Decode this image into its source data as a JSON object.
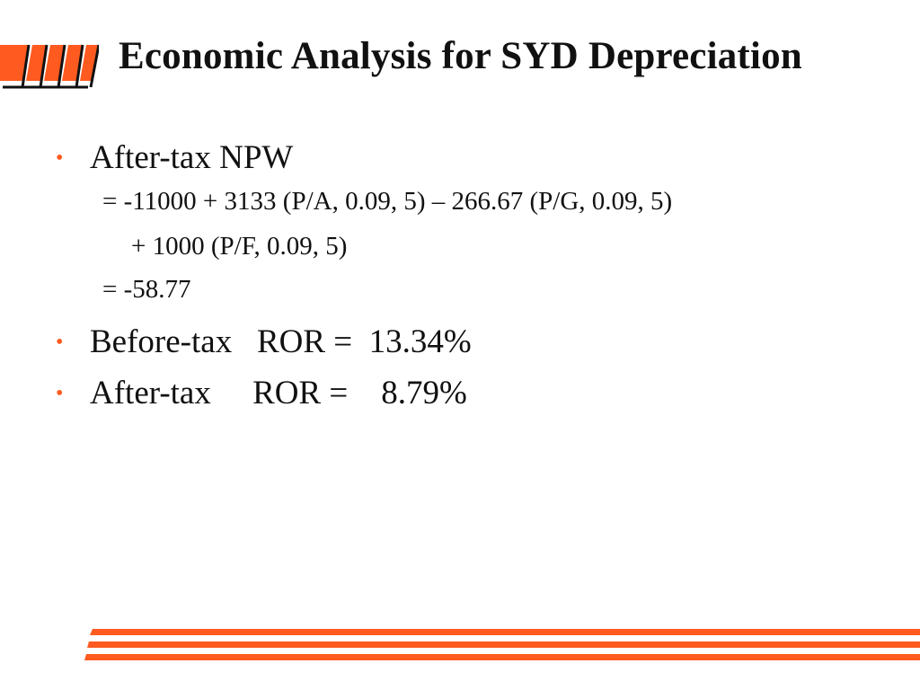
{
  "slide": {
    "title": "Economic Analysis for SYD Depreciation",
    "accent_color": "#ff5a1f",
    "logo_icon": "striped-bars-logo",
    "bullets": [
      {
        "label": "After-tax NPW",
        "lines": [
          "= -11000 + 3133 (P/A, 0.09, 5) – 266.67 (P/G, 0.09, 5)",
          "+ 1000 (P/F, 0.09, 5)",
          "= -58.77"
        ]
      },
      {
        "label": "Before-tax   ROR =  13.34%"
      },
      {
        "label": "After-tax     ROR =    8.79%"
      }
    ]
  }
}
